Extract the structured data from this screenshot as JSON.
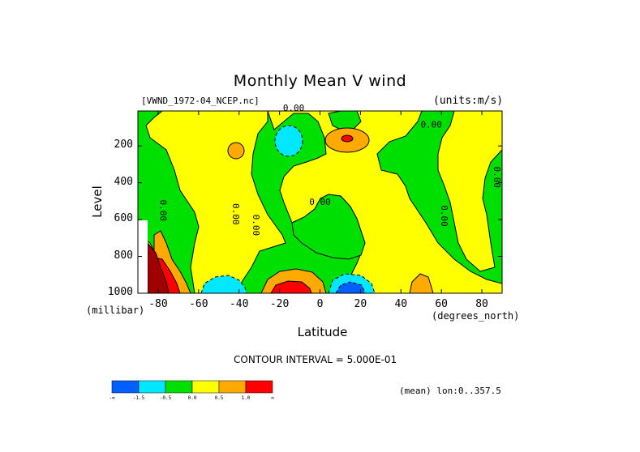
{
  "chart_data": {
    "type": "heatmap",
    "title": "Monthly Mean V wind",
    "dataset_label": "[VWND_1972-04_NCEP.nc]",
    "units_label": "(units:m/s)",
    "ylabel": "Level",
    "yunit": "(millibar)",
    "xlabel": "Latitude",
    "xunit": "(degrees_north)",
    "contour_interval_text": "CONTOUR INTERVAL = 5.000E-01",
    "mean_note": "(mean) lon:0..357.5",
    "xlim": [
      -90,
      90
    ],
    "ylim": [
      1000,
      10
    ],
    "xticks": [
      -80,
      -60,
      -40,
      -20,
      0,
      20,
      40,
      60,
      80
    ],
    "yticks": [
      200,
      400,
      600,
      800,
      1000
    ],
    "contour_labels": [
      "0.00",
      "0.00",
      "0.00",
      "0.00",
      "0.00",
      "0.00",
      "0.00",
      "0.00"
    ],
    "legend": {
      "colors": [
        "#0060ff",
        "#00e8ff",
        "#00e000",
        "#ffff00",
        "#ffaa00",
        "#ff0000"
      ],
      "labels": [
        "-∞",
        "-1.5",
        "-0.5",
        "0.0",
        "0.5",
        "1.0",
        "∞"
      ]
    },
    "colors": {
      "blue": "#0060ff",
      "cyan": "#00e8ff",
      "green": "#00e000",
      "yellow": "#ffff00",
      "orange": "#ffaa00",
      "red": "#ff0000",
      "darkred": "#a00000"
    }
  }
}
